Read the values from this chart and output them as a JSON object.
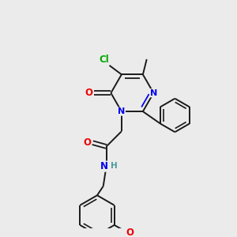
{
  "background_color": "#ebebeb",
  "bond_color": "#1a1a1a",
  "atom_colors": {
    "N": "#0000ee",
    "O": "#ee0000",
    "Cl": "#00aa00",
    "C": "#1a1a1a",
    "H": "#4a9a9a"
  },
  "figsize": [
    3.0,
    3.0
  ],
  "dpi": 100
}
